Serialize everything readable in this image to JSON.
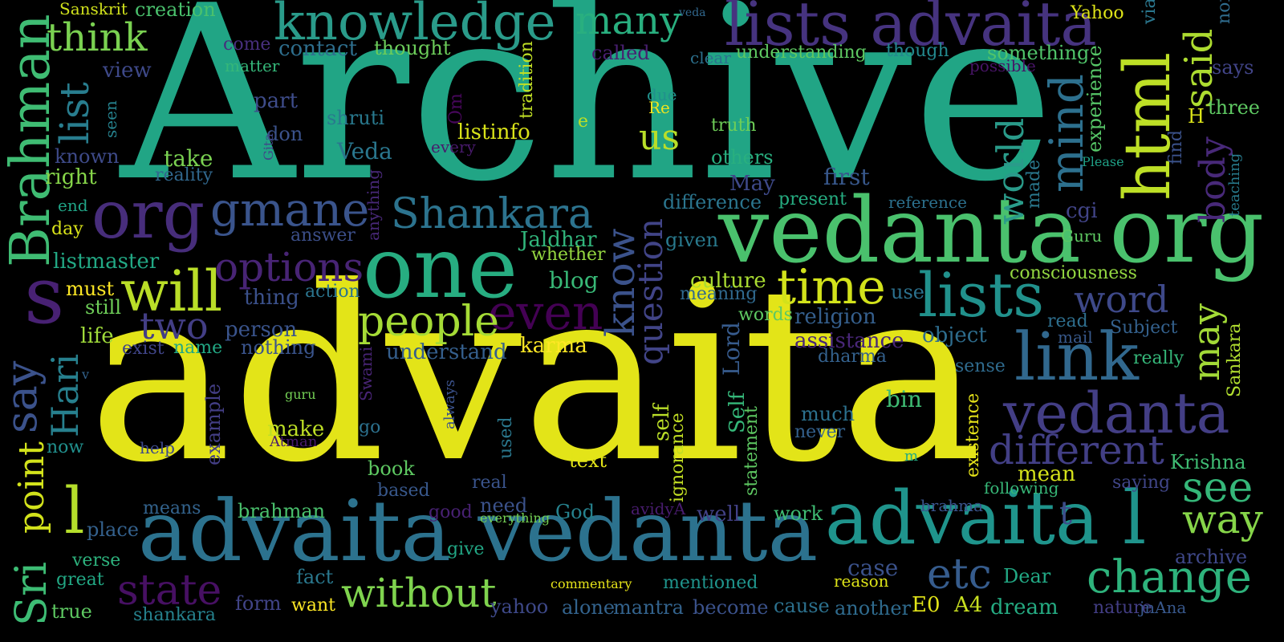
{
  "words": [
    {
      "text": "Archive",
      "color": "#21a585"
    },
    {
      "text": "advaita",
      "color": "#e3e418"
    },
    {
      "text": "vedanta org",
      "color": "#4ac16d"
    },
    {
      "text": "advaita vedanta",
      "color": "#2c728e"
    },
    {
      "text": "one",
      "color": "#27ad81"
    },
    {
      "text": "lists advaita",
      "color": "#46337f"
    },
    {
      "text": "advaita l",
      "color": "#1f948c"
    },
    {
      "text": "org",
      "color": "#472d7b"
    },
    {
      "text": "knowledge",
      "color": "#2a9b8a"
    },
    {
      "text": "html",
      "color": "#bddf26"
    },
    {
      "text": "Brahman",
      "color": "#3fbc73"
    },
    {
      "text": "lists",
      "color": "#21918c"
    },
    {
      "text": "link",
      "color": "#31688e"
    },
    {
      "text": "vedanta",
      "color": "#433e85"
    },
    {
      "text": "will",
      "color": "#bade28"
    },
    {
      "text": "s",
      "color": "#482173"
    },
    {
      "text": "gmane",
      "color": "#3a548c"
    },
    {
      "text": "time",
      "color": "#d2e21b"
    },
    {
      "text": "even",
      "color": "#440154"
    },
    {
      "text": "people",
      "color": "#a5db36"
    },
    {
      "text": "Shankara",
      "color": "#2c738e"
    },
    {
      "text": "many",
      "color": "#29af7f"
    },
    {
      "text": "think",
      "color": "#7ad151"
    },
    {
      "text": "mind",
      "color": "#2d708e"
    },
    {
      "text": "list",
      "color": "#287d8e"
    },
    {
      "text": "options",
      "color": "#482475"
    },
    {
      "text": "know",
      "color": "#3b528b"
    },
    {
      "text": "question",
      "color": "#414487"
    },
    {
      "text": "different",
      "color": "#423f85"
    },
    {
      "text": "etc",
      "color": "#365c8d"
    },
    {
      "text": "change",
      "color": "#2eb37c"
    },
    {
      "text": "state",
      "color": "#471063"
    },
    {
      "text": "without",
      "color": "#7fd34e"
    },
    {
      "text": "two",
      "color": "#433e85"
    },
    {
      "text": "word",
      "color": "#3e4989"
    },
    {
      "text": "may",
      "color": "#a2da37"
    },
    {
      "text": "say",
      "color": "#3b528b"
    },
    {
      "text": "said",
      "color": "#addc30"
    },
    {
      "text": "world",
      "color": "#2a9b8a"
    },
    {
      "text": "see",
      "color": "#35b779"
    },
    {
      "text": "way",
      "color": "#86d549"
    },
    {
      "text": "body",
      "color": "#482979"
    },
    {
      "text": "point",
      "color": "#d2e21b"
    },
    {
      "text": "Sri",
      "color": "#3dbc74"
    },
    {
      "text": "Hari",
      "color": "#27808e"
    },
    {
      "text": "us",
      "color": "#b8de29"
    },
    {
      "text": "l",
      "color": "#b5de2b"
    },
    {
      "text": "t",
      "color": "#3d4d8a"
    }
  ],
  "small_words": [
    {
      "text": "Sanskrit",
      "color": "#d0e11c"
    },
    {
      "text": "creation",
      "color": "#4ac16d"
    },
    {
      "text": "veda",
      "color": "#31688e"
    },
    {
      "text": "non",
      "color": "#2f6c8e"
    },
    {
      "text": "Yahoo",
      "color": "#dde318"
    },
    {
      "text": "via",
      "color": "#2a778e"
    },
    {
      "text": "contact",
      "color": "#2e6f8e"
    },
    {
      "text": "thought",
      "color": "#6ccd5a"
    },
    {
      "text": "come",
      "color": "#472f7d"
    },
    {
      "text": "matter",
      "color": "#35b779"
    },
    {
      "text": "view",
      "color": "#3e4989"
    },
    {
      "text": "called",
      "color": "#481f70"
    },
    {
      "text": "clear",
      "color": "#2c718e"
    },
    {
      "text": "understanding",
      "color": "#5ec962"
    },
    {
      "text": "though",
      "color": "#23898e"
    },
    {
      "text": "something",
      "color": "#50c46a"
    },
    {
      "text": "possible",
      "color": "#481467"
    },
    {
      "text": "says",
      "color": "#414487"
    },
    {
      "text": "tradition",
      "color": "#c0df25"
    },
    {
      "text": "part",
      "color": "#3e4c8a"
    },
    {
      "text": "shruti",
      "color": "#29798e"
    },
    {
      "text": "seen",
      "color": "#26828e"
    },
    {
      "text": "don",
      "color": "#3b528b"
    },
    {
      "text": "Om",
      "color": "#46075a"
    },
    {
      "text": "listinfo",
      "color": "#d8e219"
    },
    {
      "text": "e",
      "color": "#bddf26"
    },
    {
      "text": "due",
      "color": "#21918c"
    },
    {
      "text": "Re",
      "color": "#f1e51d"
    },
    {
      "text": "truth",
      "color": "#6ece58"
    },
    {
      "text": "known",
      "color": "#3e4a89"
    },
    {
      "text": "Veda",
      "color": "#2a778e"
    },
    {
      "text": "every",
      "color": "#481a6c"
    },
    {
      "text": "others",
      "color": "#29af7f"
    },
    {
      "text": "experience",
      "color": "#56c667"
    },
    {
      "text": "H",
      "color": "#dae319"
    },
    {
      "text": "three",
      "color": "#5ec962"
    },
    {
      "text": "Gita",
      "color": "#404688"
    },
    {
      "text": "take",
      "color": "#7ad151"
    },
    {
      "text": "right",
      "color": "#86d549"
    },
    {
      "text": "reality",
      "color": "#31688e"
    },
    {
      "text": "May",
      "color": "#3e4989"
    },
    {
      "text": "first",
      "color": "#38588c"
    },
    {
      "text": "made",
      "color": "#2a788e"
    },
    {
      "text": "find",
      "color": "#3b528b"
    },
    {
      "text": "Please",
      "color": "#1fa187"
    },
    {
      "text": "teaching",
      "color": "#287c8e"
    },
    {
      "text": "end",
      "color": "#20a486"
    },
    {
      "text": "difference",
      "color": "#2b758e"
    },
    {
      "text": "present",
      "color": "#26ad81"
    },
    {
      "text": "reference",
      "color": "#2c718e"
    },
    {
      "text": "cgi",
      "color": "#414487"
    },
    {
      "text": "day",
      "color": "#d8e219"
    },
    {
      "text": "answer",
      "color": "#3c4f8a"
    },
    {
      "text": "anything",
      "color": "#482878"
    },
    {
      "text": "Jaldhar",
      "color": "#31b57b"
    },
    {
      "text": "given",
      "color": "#297a8e"
    },
    {
      "text": "Guru",
      "color": "#5ec962"
    },
    {
      "text": "listmaster",
      "color": "#22a884"
    },
    {
      "text": "whether",
      "color": "#95d840"
    },
    {
      "text": "blog",
      "color": "#38b977"
    },
    {
      "text": "culture",
      "color": "#aadc32"
    },
    {
      "text": "consciousness",
      "color": "#93d741"
    },
    {
      "text": "must",
      "color": "#fde725"
    },
    {
      "text": "thing",
      "color": "#3b518b"
    },
    {
      "text": "action",
      "color": "#2b758e"
    },
    {
      "text": "meaning",
      "color": "#30698e"
    },
    {
      "text": "use",
      "color": "#2c718e"
    },
    {
      "text": "still",
      "color": "#6ece58"
    },
    {
      "text": "words",
      "color": "#5ec962"
    },
    {
      "text": "religion",
      "color": "#355f8d"
    },
    {
      "text": "read",
      "color": "#2e6f8e"
    },
    {
      "text": "Subject",
      "color": "#34618d"
    },
    {
      "text": "person",
      "color": "#3a548c"
    },
    {
      "text": "mail",
      "color": "#38598c"
    },
    {
      "text": "life",
      "color": "#9fda3a"
    },
    {
      "text": "object",
      "color": "#2e6d8e"
    },
    {
      "text": "exist",
      "color": "#404588"
    },
    {
      "text": "name",
      "color": "#22a884"
    },
    {
      "text": "nothing",
      "color": "#3a548c"
    },
    {
      "text": "understand",
      "color": "#355f8d"
    },
    {
      "text": "karma",
      "color": "#fde725"
    },
    {
      "text": "Lord",
      "color": "#375b8d"
    },
    {
      "text": "assistance",
      "color": "#482677"
    },
    {
      "text": "dharma",
      "color": "#34618d"
    },
    {
      "text": "really",
      "color": "#35b779"
    },
    {
      "text": "Sankara",
      "color": "#b0dd2f"
    },
    {
      "text": "Swami",
      "color": "#482475"
    },
    {
      "text": "v",
      "color": "#33638d"
    },
    {
      "text": "sense",
      "color": "#2f6b8e"
    },
    {
      "text": "guru",
      "color": "#74d055"
    },
    {
      "text": "always",
      "color": "#3b528b"
    },
    {
      "text": "example",
      "color": "#433e85"
    },
    {
      "text": "self",
      "color": "#bade28"
    },
    {
      "text": "Self",
      "color": "#35b779"
    },
    {
      "text": "bin",
      "color": "#3fbc73"
    },
    {
      "text": "much",
      "color": "#2c718e"
    },
    {
      "text": "never",
      "color": "#34618d"
    },
    {
      "text": "statement",
      "color": "#5ec962"
    },
    {
      "text": "ignorance",
      "color": "#c2df23"
    },
    {
      "text": "existence",
      "color": "#e7e419"
    },
    {
      "text": "make",
      "color": "#bddf26"
    },
    {
      "text": "Atman",
      "color": "#481b6d"
    },
    {
      "text": "go",
      "color": "#2c718e"
    },
    {
      "text": "used",
      "color": "#2a788e"
    },
    {
      "text": "now",
      "color": "#21908d"
    },
    {
      "text": "help",
      "color": "#3e4989"
    },
    {
      "text": "text",
      "color": "#e2e418"
    },
    {
      "text": "m",
      "color": "#25ab82"
    },
    {
      "text": "Krishna",
      "color": "#3fbc73"
    },
    {
      "text": "book",
      "color": "#5ec962"
    },
    {
      "text": "mean",
      "color": "#d5e21a"
    },
    {
      "text": "saying",
      "color": "#404688"
    },
    {
      "text": "following",
      "color": "#37b878"
    },
    {
      "text": "based",
      "color": "#38588c"
    },
    {
      "text": "real",
      "color": "#3a548c"
    },
    {
      "text": "means",
      "color": "#33638d"
    },
    {
      "text": "brahman",
      "color": "#4ac16d"
    },
    {
      "text": "good",
      "color": "#482173"
    },
    {
      "text": "need",
      "color": "#3b528b"
    },
    {
      "text": "everything",
      "color": "#74d055"
    },
    {
      "text": "God",
      "color": "#26828e"
    },
    {
      "text": "avidyA",
      "color": "#481c6e"
    },
    {
      "text": "well",
      "color": "#424186"
    },
    {
      "text": "work",
      "color": "#3fbc73"
    },
    {
      "text": "brahma",
      "color": "#3a548c"
    },
    {
      "text": "place",
      "color": "#34618d"
    },
    {
      "text": "verse",
      "color": "#2db27d"
    },
    {
      "text": "give",
      "color": "#22a785"
    },
    {
      "text": "archive",
      "color": "#3f4889"
    },
    {
      "text": "great",
      "color": "#22a884"
    },
    {
      "text": "fact",
      "color": "#2a788e"
    },
    {
      "text": "commentary",
      "color": "#e5e419"
    },
    {
      "text": "mentioned",
      "color": "#1f948c"
    },
    {
      "text": "reason",
      "color": "#dde318"
    },
    {
      "text": "case",
      "color": "#3b528b"
    },
    {
      "text": "Dear",
      "color": "#22a884"
    },
    {
      "text": "form",
      "color": "#414487"
    },
    {
      "text": "want",
      "color": "#fde725"
    },
    {
      "text": "yahoo",
      "color": "#3e4989"
    },
    {
      "text": "true",
      "color": "#5ec962"
    },
    {
      "text": "shankara",
      "color": "#26828e"
    },
    {
      "text": "alone",
      "color": "#33638d"
    },
    {
      "text": "mantra",
      "color": "#33638d"
    },
    {
      "text": "become",
      "color": "#3b528b"
    },
    {
      "text": "cause",
      "color": "#2c718e"
    },
    {
      "text": "another",
      "color": "#2f6b8e"
    },
    {
      "text": "E0",
      "color": "#e2e418"
    },
    {
      "text": "A4",
      "color": "#c8e020"
    },
    {
      "text": "dream",
      "color": "#25ab82"
    },
    {
      "text": "nature",
      "color": "#433e85"
    },
    {
      "text": "jnAna",
      "color": "#38588c"
    }
  ]
}
